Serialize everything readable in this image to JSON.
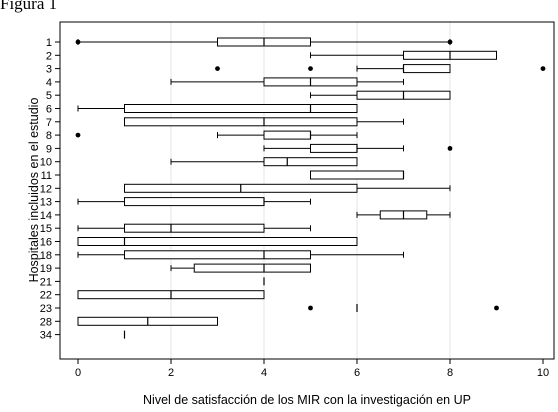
{
  "caption": "Figura 1",
  "chart_data": {
    "type": "boxplot",
    "orientation": "horizontal",
    "xlabel": "Nivel de satisfacción de los MIR con la investigación en UP",
    "ylabel": "Hospitales incluidos en el estudio",
    "xlim": [
      0,
      10
    ],
    "xticks": [
      0,
      2,
      4,
      6,
      8,
      10
    ],
    "grid": "vertical",
    "categories": [
      "1",
      "2",
      "3",
      "4",
      "5",
      "6",
      "7",
      "8",
      "9",
      "10",
      "11",
      "12",
      "13",
      "14",
      "15",
      "16",
      "18",
      "19",
      "21",
      "22",
      "23",
      "28",
      "34"
    ],
    "boxes": [
      {
        "label": "1",
        "whisker_low": 0,
        "q1": 3,
        "median": 4,
        "q3": 5,
        "whisker_high": 8,
        "outliers": [
          0,
          8
        ]
      },
      {
        "label": "2",
        "whisker_low": 5,
        "q1": 7,
        "median": 8,
        "q3": 9,
        "whisker_high": 9,
        "outliers": []
      },
      {
        "label": "3",
        "whisker_low": 6,
        "q1": 7,
        "median": 7,
        "q3": 8,
        "whisker_high": 8,
        "outliers": [
          3,
          5,
          10
        ]
      },
      {
        "label": "4",
        "whisker_low": 2,
        "q1": 4,
        "median": 5,
        "q3": 6,
        "whisker_high": 7,
        "outliers": []
      },
      {
        "label": "5",
        "whisker_low": 5,
        "q1": 6,
        "median": 7,
        "q3": 8,
        "whisker_high": 8,
        "outliers": []
      },
      {
        "label": "6",
        "whisker_low": 0,
        "q1": 1,
        "median": 5,
        "q3": 6,
        "whisker_high": 6,
        "outliers": []
      },
      {
        "label": "7",
        "whisker_low": 1,
        "q1": 1,
        "median": 4,
        "q3": 6,
        "whisker_high": 7,
        "outliers": []
      },
      {
        "label": "8",
        "whisker_low": 3,
        "q1": 4,
        "median": 5,
        "q3": 5,
        "whisker_high": 6,
        "outliers": [
          0
        ]
      },
      {
        "label": "9",
        "whisker_low": 4,
        "q1": 5,
        "median": 6,
        "q3": 6,
        "whisker_high": 7,
        "outliers": [
          8
        ]
      },
      {
        "label": "10",
        "whisker_low": 2,
        "q1": 4,
        "median": 4.5,
        "q3": 6,
        "whisker_high": 6,
        "outliers": []
      },
      {
        "label": "11",
        "whisker_low": 5,
        "q1": 5,
        "median": 7,
        "q3": 7,
        "whisker_high": 7,
        "outliers": []
      },
      {
        "label": "12",
        "whisker_low": 1,
        "q1": 1,
        "median": 3.5,
        "q3": 6,
        "whisker_high": 8,
        "outliers": []
      },
      {
        "label": "13",
        "whisker_low": 0,
        "q1": 1,
        "median": 4,
        "q3": 4,
        "whisker_high": 5,
        "outliers": []
      },
      {
        "label": "14",
        "whisker_low": 6,
        "q1": 6.5,
        "median": 7,
        "q3": 7.5,
        "whisker_high": 8,
        "outliers": []
      },
      {
        "label": "15",
        "whisker_low": 0,
        "q1": 1,
        "median": 2,
        "q3": 4,
        "whisker_high": 5,
        "outliers": []
      },
      {
        "label": "16",
        "whisker_low": 0,
        "q1": 0,
        "median": 1,
        "q3": 6,
        "whisker_high": 6,
        "outliers": []
      },
      {
        "label": "18",
        "whisker_low": 0,
        "q1": 1,
        "median": 4,
        "q3": 5,
        "whisker_high": 7,
        "outliers": []
      },
      {
        "label": "19",
        "whisker_low": 2,
        "q1": 2.5,
        "median": 4,
        "q3": 5,
        "whisker_high": 5,
        "outliers": []
      },
      {
        "label": "21",
        "whisker_low": 4,
        "q1": 4,
        "median": 4,
        "q3": 4,
        "whisker_high": 4,
        "outliers": []
      },
      {
        "label": "22",
        "whisker_low": 0,
        "q1": 0,
        "median": 2,
        "q3": 4,
        "whisker_high": 4,
        "outliers": []
      },
      {
        "label": "23",
        "whisker_low": 6,
        "q1": 6,
        "median": 6,
        "q3": 6,
        "whisker_high": 6,
        "outliers": [
          5,
          9
        ]
      },
      {
        "label": "28",
        "whisker_low": 0,
        "q1": 0,
        "median": 1.5,
        "q3": 3,
        "whisker_high": 3,
        "outliers": []
      },
      {
        "label": "34",
        "whisker_low": 1,
        "q1": 1,
        "median": 1,
        "q3": 1,
        "whisker_high": 1,
        "outliers": []
      }
    ]
  }
}
